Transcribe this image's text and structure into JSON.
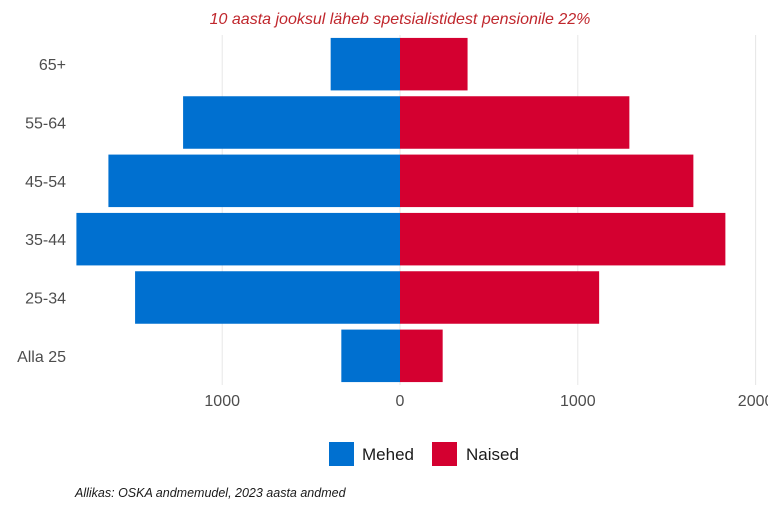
{
  "chart_data": {
    "type": "bar",
    "orientation": "horizontal-diverging",
    "subtitle": "10 aasta jooksul läheb spetsialistidest pensionile 22%",
    "caption": "Allikas: OSKA andmemudel, 2023 aasta andmed",
    "categories": [
      "Alla 25",
      "25-34",
      "35-44",
      "45-54",
      "55-64",
      "65+"
    ],
    "series": [
      {
        "name": "Mehed",
        "side": "left",
        "color": "#0070d0",
        "values": [
          330,
          1490,
          1820,
          1640,
          1220,
          390
        ]
      },
      {
        "name": "Naised",
        "side": "right",
        "color": "#d40030",
        "values": [
          240,
          1120,
          1830,
          1650,
          1290,
          380
        ]
      }
    ],
    "x_ticks": [
      {
        "value": -1000,
        "label": "1000"
      },
      {
        "value": 0,
        "label": "0"
      },
      {
        "value": 1000,
        "label": "1000"
      },
      {
        "value": 2000,
        "label": "2000"
      }
    ],
    "xlim": [
      -1830,
      2000
    ],
    "grid": "vertical",
    "legend_position": "bottom",
    "subtitle_color": "#c0272d"
  }
}
